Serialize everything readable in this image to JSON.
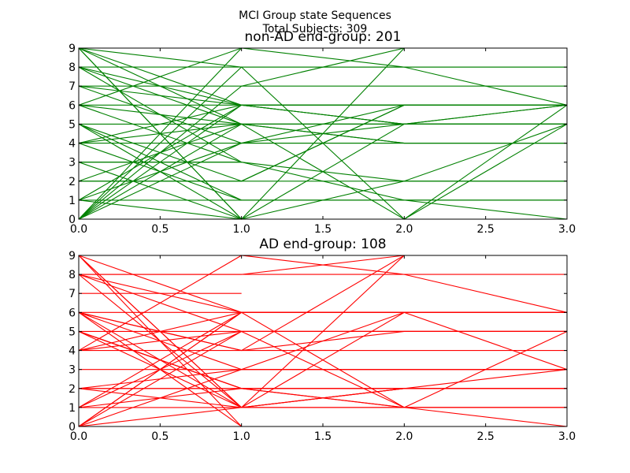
{
  "figure": {
    "title_line1": "MCI Group state Sequences",
    "title_line2": "Total Subjects: 309"
  },
  "chart_data": [
    {
      "type": "line",
      "title": "non-AD end-group: 201",
      "color": "#008000",
      "xlim": [
        0,
        3
      ],
      "ylim": [
        0,
        9
      ],
      "xticks": [
        "0.0",
        "0.5",
        "1.0",
        "1.5",
        "2.0",
        "2.5",
        "3.0"
      ],
      "yticks": [
        "0",
        "1",
        "2",
        "3",
        "4",
        "5",
        "6",
        "7",
        "8",
        "9"
      ],
      "x": [
        0,
        1,
        2,
        3
      ],
      "sequences": [
        [
          1,
          1,
          1,
          1
        ],
        [
          2,
          2,
          2,
          2
        ],
        [
          3,
          3
        ],
        [
          4,
          4,
          4,
          4
        ],
        [
          5,
          5,
          5,
          5
        ],
        [
          6,
          6,
          6,
          6
        ],
        [
          7,
          7,
          7,
          7
        ],
        [
          8,
          8,
          8,
          8
        ],
        [
          9,
          9,
          9,
          9
        ],
        [
          9,
          0
        ],
        [
          9,
          8,
          8,
          8
        ],
        [
          9,
          6,
          6,
          6
        ],
        [
          9,
          5,
          4,
          4
        ],
        [
          8,
          6,
          5,
          5
        ],
        [
          8,
          5,
          5,
          5
        ],
        [
          7,
          6,
          6,
          6
        ],
        [
          6,
          3,
          2,
          2
        ],
        [
          5,
          1,
          1,
          1
        ],
        [
          5,
          0,
          9,
          9
        ],
        [
          4,
          5,
          5,
          5
        ],
        [
          4,
          6,
          5,
          5
        ],
        [
          3,
          3
        ],
        [
          2,
          5,
          5,
          5
        ],
        [
          1,
          6,
          5,
          5
        ],
        [
          0,
          5,
          4,
          4
        ],
        [
          0,
          4,
          4,
          4
        ],
        [
          0,
          8,
          0,
          6
        ],
        [
          6,
          5,
          0,
          5
        ],
        [
          4,
          1,
          1,
          1
        ],
        [
          8,
          3,
          1,
          0
        ],
        [
          0,
          9,
          8,
          6
        ],
        [
          0,
          6,
          6,
          6
        ],
        [
          1,
          4,
          6,
          6
        ],
        [
          6,
          9,
          9,
          9
        ],
        [
          0,
          7,
          9,
          9
        ],
        [
          5,
          2,
          6,
          6
        ],
        [
          7,
          4,
          5,
          6
        ],
        [
          3,
          0,
          0,
          0
        ],
        [
          2,
          2,
          6,
          6
        ],
        [
          9,
          0,
          5,
          6
        ],
        [
          1,
          0,
          2,
          5
        ]
      ]
    },
    {
      "type": "line",
      "title": "AD end-group: 108",
      "color": "#ff0000",
      "xlim": [
        0,
        3
      ],
      "ylim": [
        0,
        9
      ],
      "xticks": [
        "0.0",
        "0.5",
        "1.0",
        "1.5",
        "2.0",
        "2.5",
        "3.0"
      ],
      "yticks": [
        "0",
        "1",
        "2",
        "3",
        "4",
        "5",
        "6",
        "7",
        "8",
        "9"
      ],
      "x": [
        0,
        1,
        2,
        3
      ],
      "sequences": [
        [
          1,
          1,
          1,
          1
        ],
        [
          2,
          2,
          2,
          2
        ],
        [
          3,
          3,
          3,
          3
        ],
        [
          4,
          4,
          4,
          4
        ],
        [
          5,
          5,
          5,
          5
        ],
        [
          6,
          6,
          6,
          6
        ],
        [
          7,
          7
        ],
        [
          8,
          8,
          8,
          8
        ],
        [
          9,
          0
        ],
        [
          9,
          1,
          1,
          1
        ],
        [
          8,
          6,
          6,
          6
        ],
        [
          8,
          5,
          5,
          5
        ],
        [
          6,
          1,
          2,
          2
        ],
        [
          6,
          3,
          3,
          3
        ],
        [
          5,
          2,
          2,
          2
        ],
        [
          5,
          1,
          1,
          1
        ],
        [
          4,
          5,
          5,
          5
        ],
        [
          4,
          6,
          6,
          6
        ],
        [
          2,
          3,
          6,
          6
        ],
        [
          1,
          6,
          6,
          6
        ],
        [
          0,
          6,
          6,
          6
        ],
        [
          0,
          3,
          3,
          3
        ],
        [
          0,
          5,
          5,
          5
        ],
        [
          0,
          1,
          2,
          2
        ],
        [
          1,
          2,
          2,
          2
        ],
        [
          6,
          4,
          9,
          9
        ],
        [
          9,
          6,
          6,
          6
        ],
        [
          8,
          8,
          9,
          9
        ],
        [
          8,
          1,
          2,
          2
        ],
        [
          6,
          4,
          5,
          5
        ],
        [
          0,
          6,
          1,
          1
        ],
        [
          2,
          1,
          9,
          9
        ],
        [
          5,
          2,
          1,
          1
        ],
        [
          6,
          0,
          0,
          0
        ],
        [
          4,
          9,
          8,
          6
        ],
        [
          5,
          2,
          2,
          3
        ],
        [
          1,
          5,
          1,
          0
        ],
        [
          9,
          1,
          6,
          3
        ],
        [
          2,
          2,
          1,
          5
        ]
      ]
    }
  ]
}
